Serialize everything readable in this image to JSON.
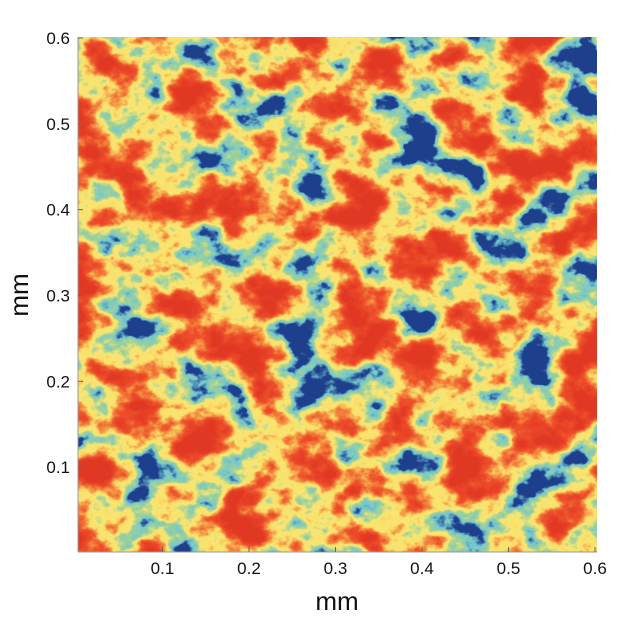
{
  "chart_data": {
    "type": "heatmap",
    "xlabel": "mm",
    "ylabel": "mm",
    "xlim": [
      0,
      0.6
    ],
    "ylim": [
      0,
      0.6
    ],
    "xticks": [
      0.1,
      0.2,
      0.3,
      0.4,
      0.5,
      0.6
    ],
    "yticks": [
      0.1,
      0.2,
      0.3,
      0.4,
      0.5,
      0.6
    ]
  }
}
